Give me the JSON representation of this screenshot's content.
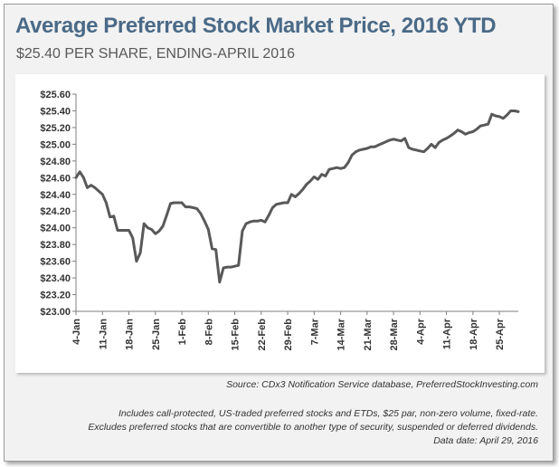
{
  "header": {
    "title": "Average Preferred Stock Market Price, 2016 YTD",
    "subtitle": "$25.40 PER SHARE, ENDING-APRIL 2016"
  },
  "footer": {
    "source": "Source:  CDx3 Notification Service database, PreferredStockInvesting.com",
    "note1": "Includes call-protected, US-traded preferred stocks and ETDs, $25 par, non-zero volume, fixed-rate.",
    "note2": "Excludes preferred stocks that are convertible to another type of security, suspended or deferred dividends.",
    "note3": "Data date:  April 29, 2016"
  },
  "colors": {
    "line": "#595959",
    "title": "#4a6a87",
    "axis": "#7f7f7f"
  },
  "chart_data": {
    "type": "line",
    "title": "Average Preferred Stock Market Price, 2016 YTD",
    "subtitle": "$25.40 PER SHARE, ENDING-APRIL 2016",
    "xlabel": "",
    "ylabel": "",
    "ylim": [
      23.0,
      25.6
    ],
    "yticks": [
      "$23.00",
      "$23.20",
      "$23.40",
      "$23.60",
      "$23.80",
      "$24.00",
      "$24.20",
      "$24.40",
      "$24.60",
      "$24.80",
      "$25.00",
      "$25.20",
      "$25.40",
      "$25.60"
    ],
    "xticks": [
      "4-Jan",
      "11-Jan",
      "18-Jan",
      "25-Jan",
      "1-Feb",
      "8-Feb",
      "15-Feb",
      "22-Feb",
      "29-Feb",
      "7-Mar",
      "14-Mar",
      "21-Mar",
      "28-Mar",
      "4-Apr",
      "11-Apr",
      "18-Apr",
      "25-Apr"
    ],
    "grid": false,
    "legend": "none",
    "series": [
      {
        "name": "Average Preferred Stock Market Price",
        "day_offsets": [
          0,
          1,
          2,
          3,
          4,
          5,
          6,
          7,
          8,
          9,
          10,
          11,
          12,
          13,
          14,
          15,
          16,
          17,
          18,
          19,
          20,
          21,
          22,
          23,
          24,
          25,
          26,
          27,
          28,
          29,
          30,
          31,
          32,
          33,
          34,
          35,
          36,
          37,
          38,
          39,
          40,
          41,
          42,
          43,
          44,
          45,
          46,
          47,
          48,
          49,
          50,
          51,
          52,
          53,
          54,
          55,
          56,
          57,
          58,
          59,
          60,
          61,
          62,
          63,
          64,
          65,
          66,
          67,
          68,
          69,
          70,
          71,
          72,
          73,
          74,
          75,
          76,
          77,
          78,
          79,
          80,
          81,
          82,
          83,
          84,
          85,
          86,
          87,
          88,
          89,
          90,
          91,
          92,
          93,
          94,
          95,
          96,
          97,
          98,
          99,
          100,
          101,
          102,
          103,
          104,
          105,
          106,
          107,
          108,
          109,
          110,
          111,
          112,
          113,
          114,
          115,
          116,
          117
        ],
        "values": [
          24.6,
          24.67,
          24.6,
          24.48,
          24.51,
          24.48,
          24.44,
          24.4,
          24.3,
          24.13,
          24.14,
          23.97,
          23.97,
          23.97,
          23.97,
          23.88,
          23.6,
          23.7,
          24.05,
          24.0,
          23.98,
          23.93,
          23.96,
          24.02,
          24.15,
          24.29,
          24.3,
          24.3,
          24.3,
          24.25,
          24.25,
          24.24,
          24.23,
          24.17,
          24.08,
          23.98,
          23.75,
          23.74,
          23.35,
          23.52,
          23.53,
          23.53,
          23.54,
          23.55,
          23.96,
          24.05,
          24.07,
          24.08,
          24.08,
          24.09,
          24.07,
          24.15,
          24.24,
          24.28,
          24.29,
          24.3,
          24.3,
          24.4,
          24.37,
          24.41,
          24.46,
          24.52,
          24.56,
          24.61,
          24.58,
          24.64,
          24.62,
          24.7,
          24.71,
          24.72,
          24.71,
          24.72,
          24.78,
          24.87,
          24.91,
          24.93,
          24.94,
          24.95,
          24.97,
          24.97,
          24.99,
          25.01,
          25.03,
          25.05,
          25.06,
          25.05,
          25.04,
          25.07,
          24.96,
          24.94,
          24.93,
          24.92,
          24.91,
          24.95,
          25.0,
          24.96,
          25.02,
          25.05,
          25.07,
          25.1,
          25.13,
          25.17,
          25.15,
          25.12,
          25.14,
          25.15,
          25.18,
          25.22,
          25.23,
          25.24,
          25.36,
          25.34,
          25.33,
          25.31,
          25.35,
          25.4,
          25.4,
          25.39
        ]
      }
    ]
  }
}
